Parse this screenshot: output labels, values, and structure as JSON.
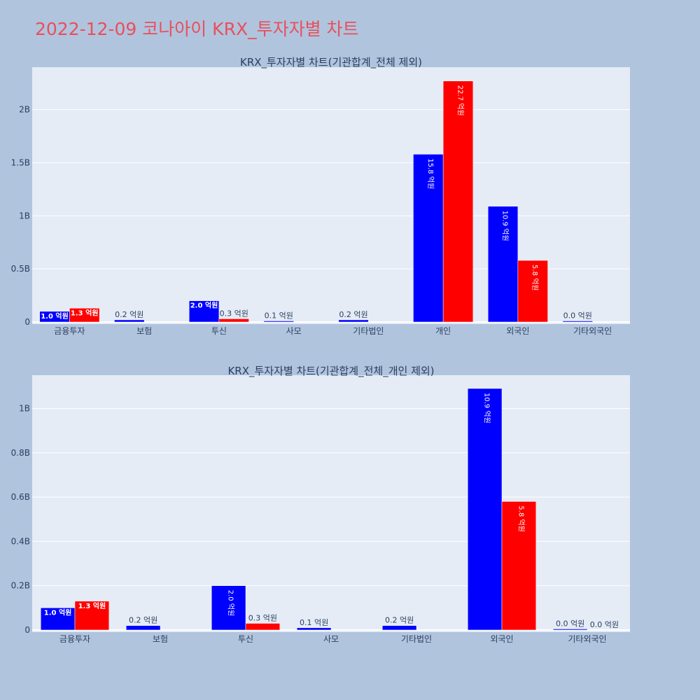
{
  "title": "2022-12-09 코나아이 KRX_투자자별 차트",
  "colors": {
    "series1": "#0000ff",
    "series2": "#ff0000",
    "background": "#b0c4de",
    "plot_bg": "#e5ecf6"
  },
  "chart_data": [
    {
      "type": "bar",
      "title": "KRX_투자자별 차트(기관합계_전체 제외)",
      "categories": [
        "금융투자",
        "보험",
        "투신",
        "사모",
        "기타법인",
        "개인",
        "외국인",
        "기타외국인"
      ],
      "ylim": [
        0,
        2.4
      ],
      "ytick_values": [
        0,
        0.5,
        1,
        1.5,
        2
      ],
      "ytick_labels": [
        "0",
        "0.5B",
        "1B",
        "1.5B",
        "2B"
      ],
      "series": [
        {
          "values": [
            0.1,
            0.02,
            0.2,
            0.01,
            0.02,
            1.58,
            1.09,
            0.003
          ],
          "labels": [
            "1.0 억원",
            "0.2 억원",
            "2.0 억원",
            "0.1 억원",
            "0.2 억원",
            "15.8 억원",
            "10.9 억원",
            "0.0 억원"
          ]
        },
        {
          "values": [
            0.13,
            0,
            0.03,
            0,
            0,
            2.27,
            0.58,
            0
          ],
          "labels": [
            "1.3 억원",
            "",
            "0.3 억원",
            "",
            "",
            "22.7 억원",
            "5.8 억원",
            ""
          ]
        }
      ],
      "grid": true
    },
    {
      "type": "bar",
      "title": "KRX_투자자별 차트(기관합계_전체_개인 제외)",
      "categories": [
        "금융투자",
        "보험",
        "투신",
        "사모",
        "기타법인",
        "외국인",
        "기타외국인"
      ],
      "ylim": [
        0,
        1.15
      ],
      "ytick_values": [
        0,
        0.2,
        0.4,
        0.6,
        0.8,
        1
      ],
      "ytick_labels": [
        "0",
        "0.2B",
        "0.4B",
        "0.6B",
        "0.8B",
        "1B"
      ],
      "series": [
        {
          "values": [
            0.1,
            0.02,
            0.2,
            0.01,
            0.02,
            1.09,
            0.003
          ],
          "labels": [
            "1.0 억원",
            "0.2 억원",
            "2.0 억원",
            "0.1 억원",
            "0.2 억원",
            "10.9 억원",
            "0.0 억원"
          ]
        },
        {
          "values": [
            0.13,
            0,
            0.03,
            0,
            0,
            0.58,
            0.0
          ],
          "labels": [
            "1.3 억원",
            "",
            "0.3 억원",
            "",
            "",
            "5.8 억원",
            "0.0 억원"
          ]
        }
      ],
      "grid": true
    }
  ]
}
